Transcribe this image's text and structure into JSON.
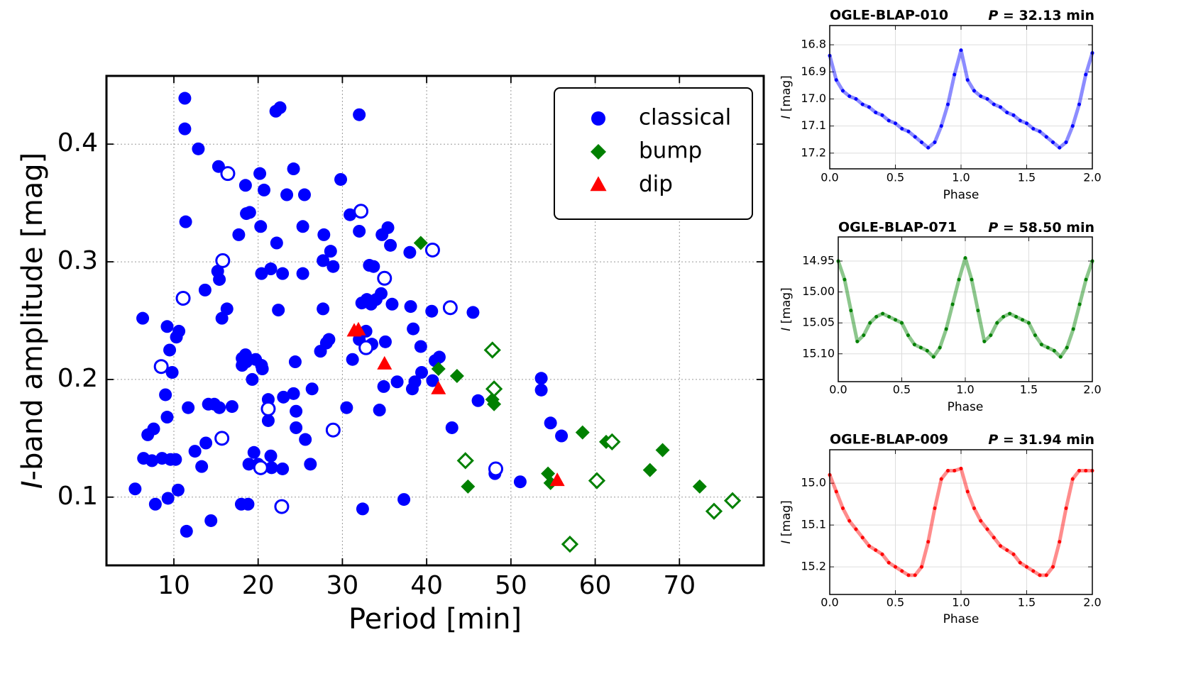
{
  "chart_data": [
    {
      "type": "scatter",
      "xlabel": "Period [min]",
      "ylabel": "I-band amplitude [mag]",
      "xlim": [
        2,
        80
      ],
      "ylim": [
        0.042,
        0.458
      ],
      "xticks": [
        10,
        20,
        30,
        40,
        50,
        60,
        70
      ],
      "yticks": [
        0.1,
        0.2,
        0.3,
        0.4
      ],
      "grid": true,
      "legend": "upper right",
      "series": [
        {
          "name": "classical",
          "color": "#0000ff",
          "marker": "circle",
          "x": [
            5.4,
            6.3,
            6.4,
            6.9,
            7.4,
            7.6,
            7.8,
            8.6,
            9.0,
            9.2,
            9.3,
            9.2,
            9.5,
            9.6,
            9.8,
            10.2,
            10.3,
            10.6,
            10.5,
            11.3,
            11.3,
            11.4,
            11.5,
            11.7,
            12.9,
            12.5,
            13.3,
            13.7,
            13.8,
            14.1,
            14.4,
            14.8,
            15.3,
            15.4,
            15.2,
            15.4,
            15.7,
            16.3,
            16.9,
            17.7,
            18.0,
            18.1,
            18.1,
            18.5,
            18.5,
            18.6,
            18.8,
            18.6,
            18.9,
            19.0,
            19.3,
            19.5,
            19.7,
            20.0,
            20.2,
            20.3,
            20.4,
            20.4,
            20.5,
            20.7,
            21.2,
            21.2,
            21.5,
            21.5,
            21.6,
            22.1,
            22.2,
            22.4,
            22.6,
            22.9,
            22.9,
            23.0,
            23.4,
            24.2,
            24.2,
            24.4,
            24.5,
            24.5,
            25.3,
            25.3,
            25.5,
            25.6,
            26.2,
            26.4,
            27.4,
            27.7,
            27.7,
            27.8,
            28.1,
            28.4,
            28.6,
            28.9,
            29.8,
            30.5,
            30.9,
            31.2,
            32.0,
            32.0,
            32.0,
            32.3,
            32.4,
            32.8,
            32.9,
            33.2,
            33.7,
            33.4,
            33.5,
            34.0,
            34.4,
            34.6,
            34.7,
            34.9,
            35.1,
            35.4,
            35.7,
            35.9,
            36.5,
            37.3,
            38.0,
            38.1,
            38.3,
            38.4,
            38.6,
            39.3,
            39.4,
            40.6,
            40.7,
            41.0,
            41.5,
            43.0,
            45.5,
            46.1,
            48.1,
            51.1,
            53.6,
            53.6,
            54.7,
            56.0,
            8.5,
            11.1,
            15.8,
            15.7,
            16.4,
            21.2,
            20.3,
            22.8,
            28.9,
            32.2,
            32.8,
            35.0,
            40.7,
            42.8,
            48.2
          ],
          "values": [
            0.107,
            0.252,
            0.133,
            0.153,
            0.131,
            0.158,
            0.094,
            0.133,
            0.187,
            0.245,
            0.099,
            0.168,
            0.225,
            0.132,
            0.206,
            0.132,
            0.236,
            0.241,
            0.106,
            0.439,
            0.413,
            0.334,
            0.071,
            0.176,
            0.396,
            0.139,
            0.126,
            0.276,
            0.146,
            0.179,
            0.08,
            0.179,
            0.381,
            0.176,
            0.292,
            0.285,
            0.252,
            0.26,
            0.177,
            0.323,
            0.094,
            0.212,
            0.218,
            0.221,
            0.365,
            0.341,
            0.094,
            0.215,
            0.128,
            0.342,
            0.2,
            0.138,
            0.217,
            0.128,
            0.375,
            0.33,
            0.212,
            0.29,
            0.209,
            0.361,
            0.183,
            0.165,
            0.294,
            0.135,
            0.125,
            0.428,
            0.316,
            0.259,
            0.431,
            0.124,
            0.29,
            0.185,
            0.357,
            0.379,
            0.188,
            0.215,
            0.159,
            0.173,
            0.33,
            0.29,
            0.357,
            0.149,
            0.128,
            0.192,
            0.224,
            0.301,
            0.26,
            0.323,
            0.231,
            0.234,
            0.309,
            0.296,
            0.37,
            0.176,
            0.34,
            0.217,
            0.425,
            0.326,
            0.234,
            0.265,
            0.09,
            0.241,
            0.268,
            0.297,
            0.296,
            0.264,
            0.23,
            0.268,
            0.174,
            0.273,
            0.323,
            0.194,
            0.232,
            0.329,
            0.314,
            0.264,
            0.198,
            0.098,
            0.308,
            0.262,
            0.192,
            0.243,
            0.198,
            0.228,
            0.206,
            0.258,
            0.199,
            0.216,
            0.219,
            0.159,
            0.257,
            0.182,
            0.12,
            0.113,
            0.201,
            0.191,
            0.163,
            0.152,
            0.211,
            0.269,
            0.301,
            0.15,
            0.375,
            0.175,
            0.125,
            0.092,
            0.157,
            0.343,
            0.227,
            0.286,
            0.31,
            0.261,
            0.124
          ],
          "hollow": [
            false,
            false,
            false,
            false,
            false,
            false,
            false,
            false,
            false,
            false,
            false,
            false,
            false,
            false,
            false,
            false,
            false,
            false,
            false,
            false,
            false,
            false,
            false,
            false,
            false,
            false,
            false,
            false,
            false,
            false,
            false,
            false,
            false,
            false,
            false,
            false,
            false,
            false,
            false,
            false,
            false,
            false,
            false,
            false,
            false,
            false,
            false,
            false,
            false,
            false,
            false,
            false,
            false,
            false,
            false,
            false,
            false,
            false,
            false,
            false,
            false,
            false,
            false,
            false,
            false,
            false,
            false,
            false,
            false,
            false,
            false,
            false,
            false,
            false,
            false,
            false,
            false,
            false,
            false,
            false,
            false,
            false,
            false,
            false,
            false,
            false,
            false,
            false,
            false,
            false,
            false,
            false,
            false,
            false,
            false,
            false,
            false,
            false,
            false,
            false,
            false,
            false,
            false,
            false,
            false,
            false,
            false,
            false,
            false,
            false,
            false,
            false,
            false,
            false,
            false,
            false,
            false,
            false,
            false,
            false,
            false,
            false,
            false,
            false,
            false,
            false,
            false,
            false,
            false,
            false,
            false,
            false,
            false,
            false,
            false,
            false,
            false,
            false,
            true,
            true,
            true,
            true,
            true,
            true,
            true,
            true,
            true,
            true,
            true,
            true,
            true,
            true,
            true
          ]
        },
        {
          "name": "bump",
          "color": "#008000",
          "marker": "diamond",
          "x": [
            39.3,
            41.4,
            43.6,
            44.9,
            47.8,
            48.0,
            54.4,
            54.7,
            58.5,
            61.3,
            66.5,
            68.0,
            72.4,
            44.6,
            47.8,
            48.0,
            57.0,
            60.2,
            62.0,
            74.1,
            76.3
          ],
          "values": [
            0.316,
            0.209,
            0.203,
            0.109,
            0.183,
            0.179,
            0.12,
            0.112,
            0.155,
            0.147,
            0.123,
            0.14,
            0.109,
            0.131,
            0.225,
            0.192,
            0.06,
            0.114,
            0.147,
            0.088,
            0.097
          ],
          "hollow": [
            false,
            false,
            false,
            false,
            false,
            false,
            false,
            false,
            false,
            false,
            false,
            false,
            false,
            true,
            true,
            true,
            true,
            true,
            true,
            true,
            true
          ]
        },
        {
          "name": "dip",
          "color": "#ff0000",
          "marker": "triangle",
          "x": [
            31.4,
            31.9,
            35.0,
            41.4,
            55.5
          ],
          "values": [
            0.241,
            0.242,
            0.213,
            0.192,
            0.114
          ],
          "hollow": [
            false,
            false,
            false,
            false,
            false
          ]
        }
      ]
    },
    {
      "type": "scatter",
      "title": "OGLE-BLAP-010",
      "annotation": "P = 32.13 min",
      "xlabel": "Phase",
      "ylabel": "I [mag]",
      "color": "#0000ff",
      "grid": true,
      "xlim": [
        0,
        2
      ],
      "ylim": [
        17.258,
        16.729
      ],
      "xticks": [
        {
          "value": 0,
          "label": "0.0"
        },
        0.5,
        {
          "value": 1,
          "label": "1.0"
        },
        1.5,
        {
          "value": 2,
          "label": "2.0"
        }
      ],
      "yticks": [
        16.8,
        16.9,
        {
          "value": 17,
          "label": "17.0"
        },
        17.1,
        17.2
      ],
      "x": [
        0,
        0.05,
        0.1,
        0.15,
        0.2,
        0.25,
        0.3,
        0.35,
        0.4,
        0.45,
        0.5,
        0.55,
        0.6,
        0.65,
        0.7,
        0.75,
        0.8,
        0.85,
        0.9,
        0.95,
        1,
        1.05,
        1.1,
        1.15,
        1.2,
        1.25,
        1.3,
        1.35,
        1.4,
        1.45,
        1.5,
        1.55,
        1.6,
        1.65,
        1.7,
        1.75,
        1.8,
        1.85,
        1.9,
        1.95,
        2
      ],
      "values": [
        16.84,
        16.93,
        16.97,
        16.99,
        17.0,
        17.02,
        17.03,
        17.05,
        17.06,
        17.08,
        17.09,
        17.11,
        17.12,
        17.14,
        17.16,
        17.18,
        17.16,
        17.1,
        17.02,
        16.91,
        16.82,
        16.93,
        16.97,
        16.99,
        17.0,
        17.02,
        17.03,
        17.05,
        17.06,
        17.08,
        17.09,
        17.11,
        17.12,
        17.14,
        17.16,
        17.18,
        17.16,
        17.1,
        17.02,
        16.91,
        16.83
      ]
    },
    {
      "type": "scatter",
      "title": "OGLE-BLAP-071",
      "annotation": "P = 58.50 min",
      "xlabel": "Phase",
      "ylabel": "I [mag]",
      "color": "#008000",
      "grid": true,
      "xlim": [
        0,
        2
      ],
      "ylim": [
        15.145,
        14.911
      ],
      "xticks": [
        {
          "value": 0,
          "label": "0.0"
        },
        0.5,
        {
          "value": 1,
          "label": "1.0"
        },
        1.5,
        {
          "value": 2,
          "label": "2.0"
        }
      ],
      "yticks": [
        14.95,
        {
          "value": 15,
          "label": "15.00"
        },
        15.05,
        {
          "value": 15.1,
          "label": "15.10"
        }
      ],
      "x": [
        0,
        0.05,
        0.1,
        0.15,
        0.2,
        0.25,
        0.3,
        0.35,
        0.4,
        0.45,
        0.5,
        0.55,
        0.6,
        0.65,
        0.7,
        0.75,
        0.8,
        0.85,
        0.9,
        0.95,
        1,
        1.05,
        1.1,
        1.15,
        1.2,
        1.25,
        1.3,
        1.35,
        1.4,
        1.45,
        1.5,
        1.55,
        1.6,
        1.65,
        1.7,
        1.75,
        1.8,
        1.85,
        1.9,
        1.95,
        2
      ],
      "values": [
        14.95,
        14.98,
        15.03,
        15.08,
        15.07,
        15.05,
        15.04,
        15.035,
        15.04,
        15.045,
        15.05,
        15.07,
        15.085,
        15.09,
        15.095,
        15.105,
        15.09,
        15.06,
        15.02,
        14.98,
        14.945,
        14.98,
        15.03,
        15.08,
        15.07,
        15.05,
        15.04,
        15.035,
        15.04,
        15.045,
        15.05,
        15.07,
        15.085,
        15.09,
        15.095,
        15.105,
        15.09,
        15.06,
        15.02,
        14.98,
        14.95
      ]
    },
    {
      "type": "scatter",
      "title": "OGLE-BLAP-009",
      "annotation": "P = 31.94 min",
      "xlabel": "Phase",
      "ylabel": "I [mag]",
      "color": "#ff0000",
      "grid": true,
      "xlim": [
        0,
        2
      ],
      "ylim": [
        15.266,
        14.92
      ],
      "xticks": [
        {
          "value": 0,
          "label": "0.0"
        },
        0.5,
        {
          "value": 1,
          "label": "1.0"
        },
        1.5,
        {
          "value": 2,
          "label": "2.0"
        }
      ],
      "yticks": [
        {
          "value": 15,
          "label": "15.0"
        },
        15.1,
        15.2
      ],
      "x": [
        0,
        0.05,
        0.1,
        0.15,
        0.2,
        0.25,
        0.3,
        0.35,
        0.4,
        0.45,
        0.5,
        0.55,
        0.6,
        0.65,
        0.7,
        0.75,
        0.8,
        0.85,
        0.9,
        0.95,
        1,
        1.05,
        1.1,
        1.15,
        1.2,
        1.25,
        1.3,
        1.35,
        1.4,
        1.45,
        1.5,
        1.55,
        1.6,
        1.65,
        1.7,
        1.75,
        1.8,
        1.85,
        1.9,
        1.95,
        2
      ],
      "values": [
        14.98,
        15.02,
        15.06,
        15.09,
        15.11,
        15.13,
        15.15,
        15.16,
        15.17,
        15.19,
        15.2,
        15.21,
        15.22,
        15.22,
        15.2,
        15.14,
        15.06,
        14.99,
        14.97,
        14.97,
        14.965,
        15.02,
        15.06,
        15.09,
        15.11,
        15.13,
        15.15,
        15.16,
        15.17,
        15.19,
        15.2,
        15.21,
        15.22,
        15.22,
        15.2,
        15.14,
        15.06,
        14.99,
        14.97,
        14.97,
        14.97
      ]
    }
  ]
}
